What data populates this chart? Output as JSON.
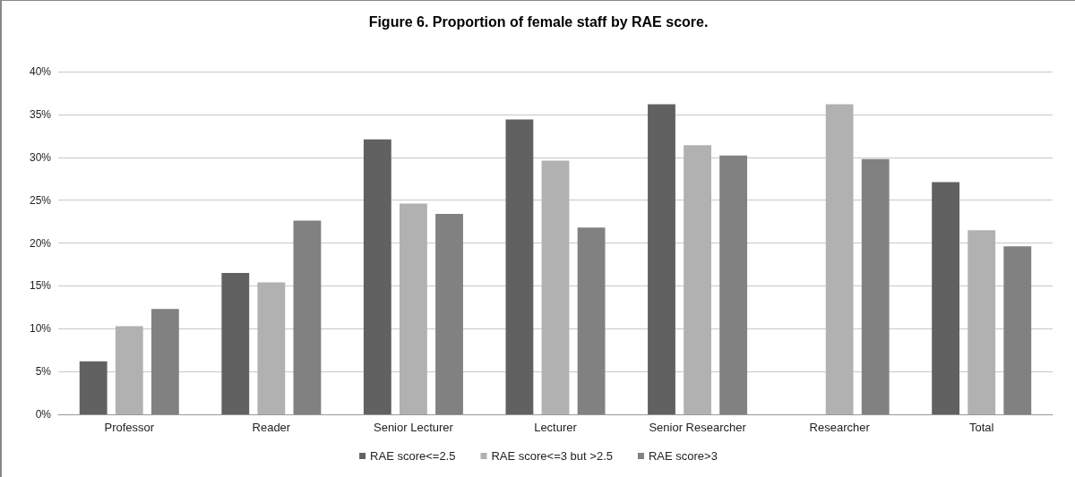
{
  "chart_data": {
    "type": "bar",
    "title": "Figure 6. Proportion of female staff by RAE score.",
    "categories": [
      "Professor",
      "Reader",
      "Senior Lecturer",
      "Lecturer",
      "Senior Researcher",
      "Researcher",
      "Total"
    ],
    "series": [
      {
        "name": "RAE score<=2.5",
        "color": "#616161",
        "values": [
          6.2,
          16.5,
          32.1,
          34.4,
          36.2,
          null,
          27.1
        ]
      },
      {
        "name": "RAE score<=3 but >2.5",
        "color": "#b1b1b1",
        "values": [
          10.3,
          15.4,
          24.6,
          29.6,
          31.4,
          36.2,
          21.5
        ]
      },
      {
        "name": "RAE score>3",
        "color": "#818181",
        "values": [
          12.3,
          22.6,
          23.4,
          21.8,
          30.2,
          29.8,
          19.6
        ]
      }
    ],
    "ylim": [
      0,
      40
    ],
    "yticks": [
      {
        "value": 0,
        "label": "0%"
      },
      {
        "value": 5,
        "label": "5%"
      },
      {
        "value": 10,
        "label": "10%"
      },
      {
        "value": 15,
        "label": "15%"
      },
      {
        "value": 20,
        "label": "20%"
      },
      {
        "value": 25,
        "label": "25%"
      },
      {
        "value": 30,
        "label": "30%"
      },
      {
        "value": 35,
        "label": "35%"
      },
      {
        "value": 40,
        "label": "40%"
      }
    ],
    "grid": "y",
    "legend": "bottom"
  }
}
